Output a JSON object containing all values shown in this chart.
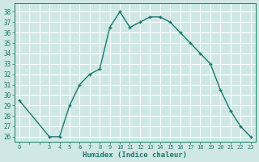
{
  "x": [
    0,
    1,
    2,
    3,
    4,
    5,
    6,
    7,
    8,
    9,
    10,
    11,
    12,
    13,
    14,
    15,
    16,
    17,
    18,
    19,
    20,
    21,
    22,
    23
  ],
  "y": [
    29.5,
    null,
    null,
    26,
    26,
    29,
    31,
    32,
    32.5,
    36.5,
    38,
    36.5,
    37,
    37.5,
    37.5,
    37,
    36,
    35,
    34,
    33,
    30.5,
    28.5,
    27,
    26
  ],
  "xlabel": "Humidex (Indice chaleur)",
  "xtick_labels": [
    "0",
    "",
    "",
    "3",
    "4",
    "5",
    "6",
    "7",
    "8",
    "9",
    "10",
    "11",
    "12",
    "13",
    "14",
    "15",
    "16",
    "17",
    "18",
    "19",
    "20",
    "21",
    "22",
    "23"
  ],
  "yticks": [
    26,
    27,
    28,
    29,
    30,
    31,
    32,
    33,
    34,
    35,
    36,
    37,
    38
  ],
  "ylim": [
    25.5,
    38.8
  ],
  "xlim": [
    -0.5,
    23.5
  ],
  "line_color": "#1a7a6e",
  "marker_color": "#1a7a6e",
  "bg_color": "#cfe8e5",
  "grid_color": "#ffffff",
  "grid_minor_color": "#bddbd7"
}
